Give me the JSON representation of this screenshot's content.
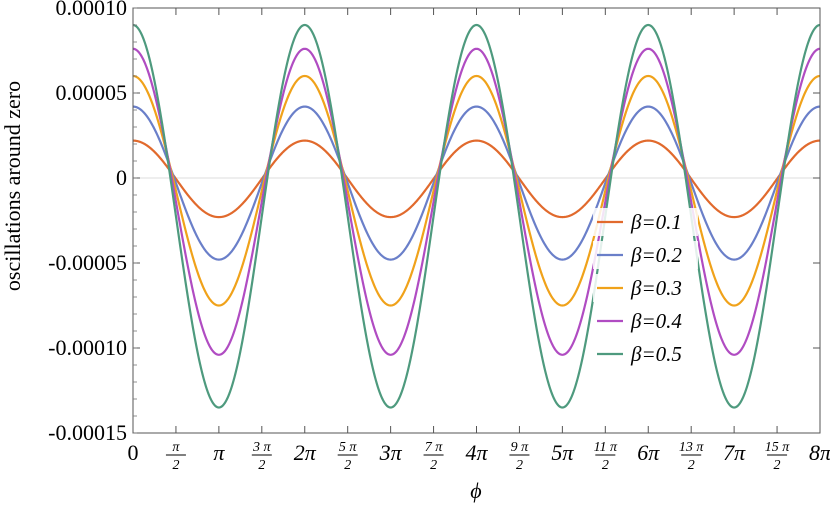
{
  "chart_data": {
    "type": "line",
    "title": "",
    "xlabel": "ϕ",
    "ylabel": "oscillations around zero",
    "xlim": [
      0,
      25.1327
    ],
    "ylim": [
      -0.00015,
      0.0001
    ],
    "grid": false,
    "legend_position": "right-center",
    "y_ticks": [
      {
        "value": 0.0001,
        "label": "0.00010"
      },
      {
        "value": 5e-05,
        "label": "0.00005"
      },
      {
        "value": 0,
        "label": "0"
      },
      {
        "value": -5e-05,
        "label": "-0.00005"
      },
      {
        "value": -0.0001,
        "label": "-0.00010"
      },
      {
        "value": -0.00015,
        "label": "-0.00015"
      }
    ],
    "x_ticks": [
      {
        "value": 0,
        "label": "0"
      },
      {
        "value": 1.5708,
        "num": "π",
        "den": "2"
      },
      {
        "value": 3.1416,
        "label": "π"
      },
      {
        "value": 4.7124,
        "num": "3 π",
        "den": "2"
      },
      {
        "value": 6.2832,
        "label": "2π"
      },
      {
        "value": 7.854,
        "num": "5 π",
        "den": "2"
      },
      {
        "value": 9.4248,
        "label": "3π"
      },
      {
        "value": 10.9956,
        "num": "7 π",
        "den": "2"
      },
      {
        "value": 12.5664,
        "label": "4π"
      },
      {
        "value": 14.1372,
        "num": "9 π",
        "den": "2"
      },
      {
        "value": 15.708,
        "label": "5π"
      },
      {
        "value": 17.2788,
        "num": "11 π",
        "den": "2"
      },
      {
        "value": 18.8496,
        "label": "6π"
      },
      {
        "value": 20.4204,
        "num": "13 π",
        "den": "2"
      },
      {
        "value": 21.9911,
        "label": "7π"
      },
      {
        "value": 23.5619,
        "num": "15 π",
        "den": "2"
      },
      {
        "value": 25.1327,
        "label": "8π"
      }
    ],
    "series": [
      {
        "name": "β=0.1",
        "color": "#E16A2D",
        "max": 2.2e-05,
        "min": -2.3e-05
      },
      {
        "name": "β=0.2",
        "color": "#6A7FC9",
        "max": 4.2e-05,
        "min": -4.8e-05
      },
      {
        "name": "β=0.3",
        "color": "#F0A21A",
        "max": 6e-05,
        "min": -7.5e-05
      },
      {
        "name": "β=0.4",
        "color": "#B04CC2",
        "max": 7.6e-05,
        "min": -0.000104
      },
      {
        "name": "β=0.5",
        "color": "#4E9A7E",
        "max": 9e-05,
        "min": -0.000135
      }
    ],
    "period": 6.2832,
    "zero_crossings": [
      1.2566,
      4.6,
      7.7,
      10.75,
      13.9,
      16.75,
      19.8,
      22.8
    ]
  }
}
